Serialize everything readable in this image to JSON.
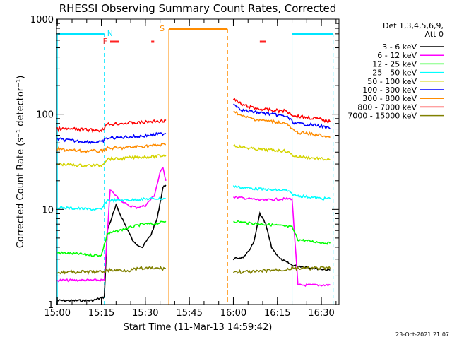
{
  "chart_data": {
    "type": "line",
    "title": "RHESSI Observing Summary Count Rates, Corrected",
    "xlabel": "Start Time (11-Mar-13 14:59:42)",
    "ylabel": "Corrected Count Rate (s⁻¹ detector⁻¹)",
    "yscale": "log",
    "ylim": [
      1,
      1000
    ],
    "xlim": [
      "15:00",
      "16:36"
    ],
    "x_ticks": [
      "15:00",
      "15:15",
      "15:30",
      "15:45",
      "16:00",
      "16:15",
      "16:30"
    ],
    "y_ticks": [
      "1",
      "10",
      "100",
      "1000"
    ],
    "legend_title": "Det 1,3,4,5,6,9,",
    "legend_subtitle": "Att 0",
    "legend_position": "right",
    "footer": "23-Oct-2021 21:07",
    "flags": [
      {
        "label": "N",
        "color": "#00e5ff",
        "type": "night",
        "intervals": [
          [
            "15:00",
            "15:16"
          ],
          [
            "16:20",
            "16:34"
          ]
        ]
      },
      {
        "label": "F",
        "color": "#ff2222",
        "type": "flare",
        "intervals": [
          [
            "15:18",
            "15:21"
          ],
          [
            "15:32",
            "15:33"
          ],
          [
            "16:09",
            "16:11"
          ]
        ]
      },
      {
        "label": "S",
        "color": "#ff8c00",
        "type": "saa",
        "intervals": [
          [
            "15:38",
            "15:58"
          ]
        ]
      }
    ],
    "gaps": [
      [
        "15:38",
        "15:59"
      ]
    ],
    "series": [
      {
        "name": "3 - 6 keV",
        "color": "#000000",
        "segments": [
          {
            "x": [
              "15:00",
              "15:04",
              "15:08",
              "15:12",
              "15:16",
              "15:17",
              "15:20",
              "15:23",
              "15:26",
              "15:29",
              "15:32",
              "15:34",
              "15:36",
              "15:37"
            ],
            "y": [
              1.1,
              1.1,
              1.1,
              1.1,
              1.2,
              6,
              11,
              7,
              4.5,
              4,
              5.5,
              8,
              17,
              18
            ]
          },
          {
            "x": [
              "16:00",
              "16:04",
              "16:07",
              "16:09",
              "16:11",
              "16:13",
              "16:16",
              "16:20",
              "16:24",
              "16:28",
              "16:33"
            ],
            "y": [
              3,
              3.2,
              4.5,
              9,
              7,
              4,
              3,
              2.6,
              2.5,
              2.4,
              2.3
            ]
          }
        ]
      },
      {
        "name": "6 - 12 keV",
        "color": "#ff00ff",
        "segments": [
          {
            "x": [
              "15:00",
              "15:04",
              "15:08",
              "15:12",
              "15:16",
              "15:18",
              "15:21",
              "15:24",
              "15:27",
              "15:30",
              "15:33",
              "15:35",
              "15:36",
              "15:37"
            ],
            "y": [
              1.8,
              1.8,
              1.8,
              1.8,
              1.8,
              16,
              13,
              11,
              10.5,
              11,
              14,
              24,
              28,
              20
            ]
          },
          {
            "x": [
              "16:00",
              "16:05",
              "16:10",
              "16:15",
              "16:20",
              "16:22",
              "16:26",
              "16:30",
              "16:33"
            ],
            "y": [
              13.5,
              13,
              12.5,
              12.8,
              13,
              1.6,
              1.6,
              1.6,
              1.6
            ]
          }
        ]
      },
      {
        "name": "12 - 25 keV",
        "color": "#00ff00",
        "segments": [
          {
            "x": [
              "15:00",
              "15:08",
              "15:12",
              "15:15",
              "15:17",
              "15:21",
              "15:25",
              "15:29",
              "15:33",
              "15:37"
            ],
            "y": [
              3.5,
              3.4,
              3.3,
              3.3,
              5.5,
              6,
              6.5,
              7,
              7,
              7.5
            ]
          },
          {
            "x": [
              "16:00",
              "16:05",
              "16:10",
              "16:15",
              "16:20",
              "16:22",
              "16:27",
              "16:33"
            ],
            "y": [
              7.5,
              7.2,
              7,
              6.8,
              6.5,
              4.8,
              4.6,
              4.4
            ]
          }
        ]
      },
      {
        "name": "25 - 50 keV",
        "color": "#00ffff",
        "segments": [
          {
            "x": [
              "15:00",
              "15:04",
              "15:08",
              "15:12",
              "15:15",
              "15:17",
              "15:21",
              "15:25",
              "15:29",
              "15:33",
              "15:37"
            ],
            "y": [
              10.5,
              10.3,
              10.2,
              10,
              10,
              12.5,
              12.5,
              12.6,
              12.8,
              13,
              13
            ]
          },
          {
            "x": [
              "16:00",
              "16:03",
              "16:08",
              "16:13",
              "16:18",
              "16:21",
              "16:26",
              "16:30",
              "16:33"
            ],
            "y": [
              17.5,
              17,
              16.5,
              16,
              15.8,
              14,
              13.5,
              13,
              13
            ]
          }
        ]
      },
      {
        "name": "50 - 100 keV",
        "color": "#d4d400",
        "segments": [
          {
            "x": [
              "15:00",
              "15:04",
              "15:08",
              "15:12",
              "15:15",
              "15:17",
              "15:21",
              "15:25",
              "15:29",
              "15:33",
              "15:37"
            ],
            "y": [
              30,
              29.5,
              29,
              29,
              29,
              34,
              34,
              35,
              35.5,
              36,
              37
            ]
          },
          {
            "x": [
              "16:00",
              "16:03",
              "16:08",
              "16:13",
              "16:18",
              "16:21",
              "16:26",
              "16:30",
              "16:33"
            ],
            "y": [
              47,
              45,
              43,
              42,
              41,
              36,
              35,
              34,
              33
            ]
          }
        ]
      },
      {
        "name": "100 - 300 keV",
        "color": "#0000ff",
        "segments": [
          {
            "x": [
              "15:00",
              "15:04",
              "15:08",
              "15:12",
              "15:15",
              "15:17",
              "15:21",
              "15:25",
              "15:29",
              "15:33",
              "15:37"
            ],
            "y": [
              55,
              53,
              52,
              51,
              51,
              56,
              57,
              58,
              59,
              61,
              63
            ]
          },
          {
            "x": [
              "16:00",
              "16:03",
              "16:08",
              "16:13",
              "16:18",
              "16:21",
              "16:26",
              "16:30",
              "16:33"
            ],
            "y": [
              130,
              110,
              105,
              100,
              95,
              80,
              78,
              75,
              70
            ]
          }
        ]
      },
      {
        "name": "300 - 800 keV",
        "color": "#ff8c00",
        "segments": [
          {
            "x": [
              "15:00",
              "15:04",
              "15:08",
              "15:12",
              "15:15",
              "15:17",
              "15:21",
              "15:25",
              "15:29",
              "15:33",
              "15:37"
            ],
            "y": [
              43,
              42,
              41,
              41,
              41,
              44,
              44,
              45,
              46,
              47,
              48
            ]
          },
          {
            "x": [
              "16:00",
              "16:03",
              "16:08",
              "16:13",
              "16:18",
              "16:21",
              "16:26",
              "16:30",
              "16:33"
            ],
            "y": [
              110,
              95,
              88,
              84,
              80,
              65,
              62,
              60,
              57
            ]
          }
        ]
      },
      {
        "name": "800 - 7000 keV",
        "color": "#ff0000",
        "segments": [
          {
            "x": [
              "15:00",
              "15:04",
              "15:08",
              "15:12",
              "15:15",
              "15:17",
              "15:21",
              "15:25",
              "15:29",
              "15:33",
              "15:37"
            ],
            "y": [
              70,
              70,
              69,
              68,
              68,
              78,
              80,
              81,
              82,
              84,
              86
            ]
          },
          {
            "x": [
              "16:00",
              "16:03",
              "16:08",
              "16:13",
              "16:18",
              "16:21",
              "16:26",
              "16:30",
              "16:33"
            ],
            "y": [
              145,
              125,
              115,
              110,
              108,
              96,
              92,
              88,
              83
            ]
          }
        ]
      },
      {
        "name": "7000 - 15000 keV",
        "color": "#808000",
        "segments": [
          {
            "x": [
              "15:00",
              "15:04",
              "15:08",
              "15:12",
              "15:15",
              "15:17",
              "15:21",
              "15:25",
              "15:29",
              "15:33",
              "15:37"
            ],
            "y": [
              2.2,
              2.2,
              2.2,
              2.2,
              2.2,
              2.3,
              2.3,
              2.3,
              2.4,
              2.4,
              2.4
            ]
          },
          {
            "x": [
              "16:00",
              "16:04",
              "16:08",
              "16:12",
              "16:16",
              "16:20",
              "16:24",
              "16:28",
              "16:33"
            ],
            "y": [
              2.2,
              2.2,
              2.2,
              2.3,
              2.3,
              2.4,
              2.4,
              2.4,
              2.4
            ]
          }
        ]
      }
    ]
  }
}
